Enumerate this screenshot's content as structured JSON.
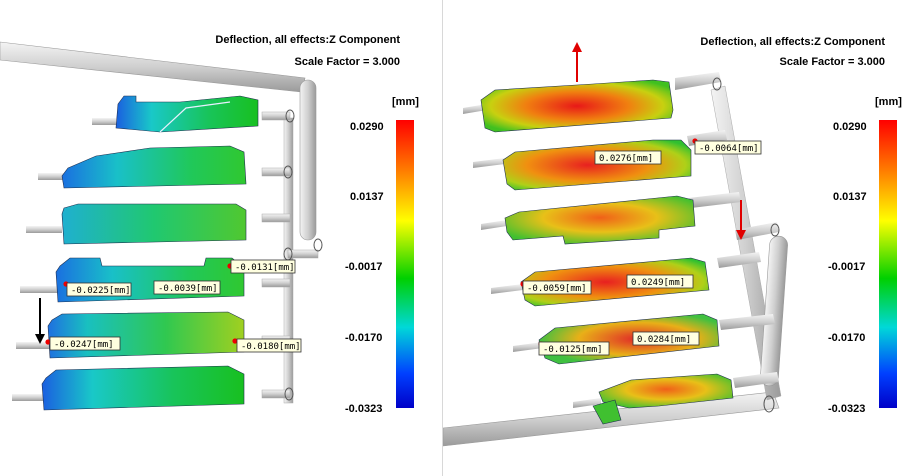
{
  "left": {
    "title": "Deflection, all effects:Z Component",
    "scale": "Scale Factor = 3.000",
    "unit": "[mm]",
    "colorbar_ticks": [
      "0.0290",
      "0.0137",
      "-0.0017",
      "-0.0170",
      "-0.0323"
    ],
    "callouts": [
      "-0.0131[mm]",
      "-0.0225[mm]",
      "-0.0039[mm]",
      "-0.0247[mm]",
      "-0.0180[mm]"
    ]
  },
  "right": {
    "title": "Deflection, all effects:Z Component",
    "scale": "Scale Factor = 3.000",
    "unit": "[mm]",
    "colorbar_ticks": [
      "0.0290",
      "0.0137",
      "-0.0017",
      "-0.0170",
      "-0.0323"
    ],
    "callouts": [
      "0.0276[mm]",
      "-0.0064[mm]",
      "-0.0059[mm]",
      "0.0249[mm]",
      "-0.0125[mm]",
      "0.0284[mm]"
    ]
  },
  "colors": {
    "max": "#ff0000",
    "high": "#ffff00",
    "mid": "#00d000",
    "low": "#00d8d8",
    "min": "#0000c8",
    "label_bg": "#ffffe0",
    "arrow_black": "#000000",
    "arrow_red": "#e00000"
  }
}
